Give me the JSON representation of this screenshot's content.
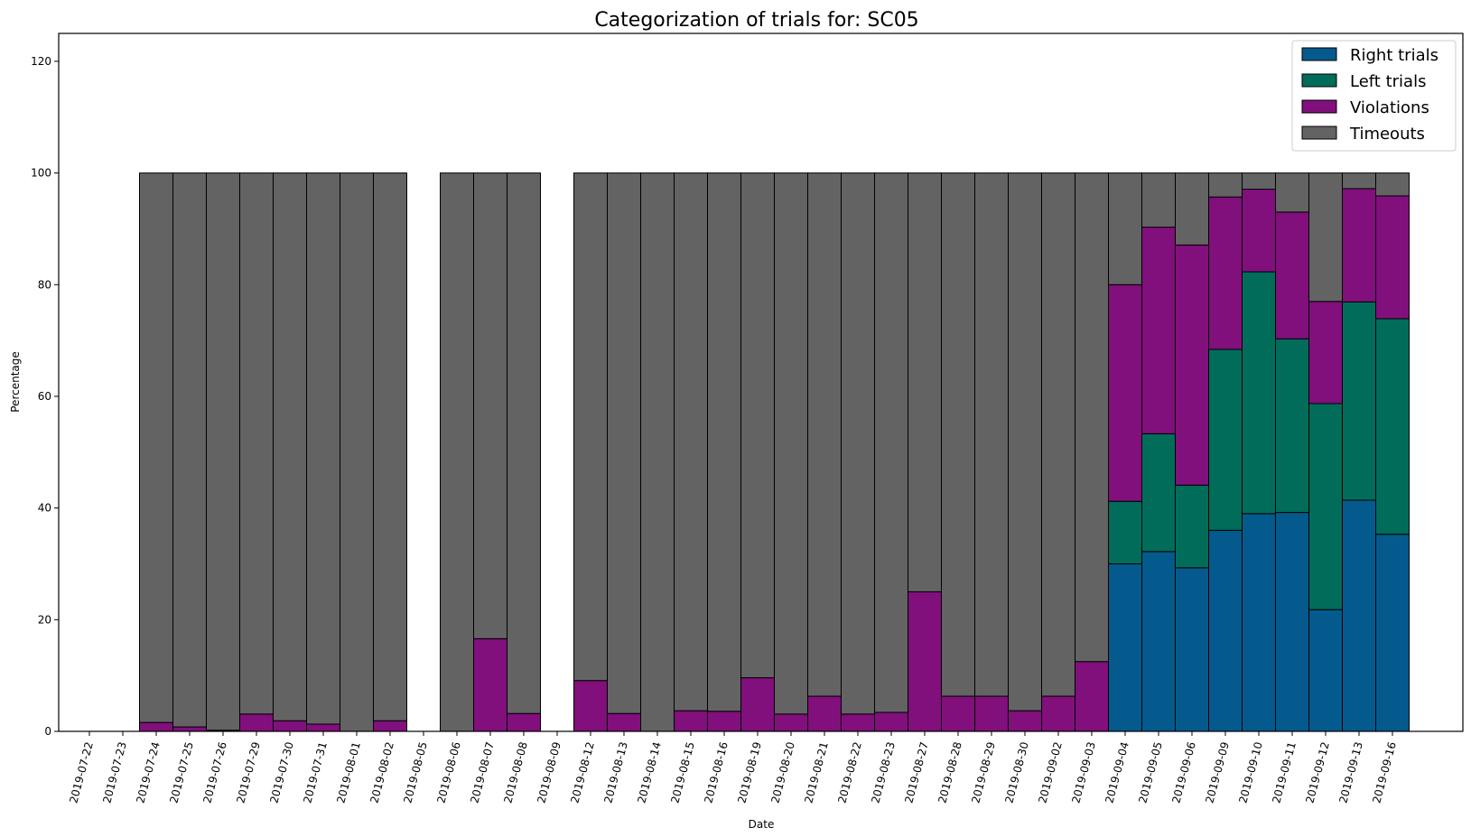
{
  "chart_data": {
    "type": "bar",
    "stacked": true,
    "title": "Categorization of trials for: SC05",
    "xlabel": "Date",
    "ylabel": "Percentage",
    "ylim": [
      0,
      125
    ],
    "yticks": [
      0,
      20,
      40,
      60,
      80,
      100,
      120
    ],
    "legend_position": "top-right",
    "grid": false,
    "categories": [
      "2019-07-22",
      "2019-07-23",
      "2019-07-24",
      "2019-07-25",
      "2019-07-26",
      "2019-07-29",
      "2019-07-30",
      "2019-07-31",
      "2019-08-01",
      "2019-08-02",
      "2019-08-05",
      "2019-08-06",
      "2019-08-07",
      "2019-08-08",
      "2019-08-09",
      "2019-08-12",
      "2019-08-13",
      "2019-08-14",
      "2019-08-15",
      "2019-08-16",
      "2019-08-19",
      "2019-08-20",
      "2019-08-21",
      "2019-08-22",
      "2019-08-23",
      "2019-08-27",
      "2019-08-28",
      "2019-08-29",
      "2019-08-30",
      "2019-09-02",
      "2019-09-03",
      "2019-09-04",
      "2019-09-05",
      "2019-09-06",
      "2019-09-09",
      "2019-09-10",
      "2019-09-11",
      "2019-09-12",
      "2019-09-13",
      "2019-09-16"
    ],
    "series": [
      {
        "name": "Right trials",
        "color": "#045a8d",
        "values": [
          0,
          0,
          0,
          0,
          0,
          0,
          0,
          0,
          0,
          0,
          0,
          0,
          0,
          0,
          0,
          0,
          0,
          0,
          0,
          0,
          0,
          0,
          0,
          0,
          0,
          0,
          0,
          0,
          0,
          0,
          0,
          30,
          32.2,
          29.3,
          36,
          39,
          39.2,
          21.8,
          41.4,
          35.3
        ]
      },
      {
        "name": "Left trials",
        "color": "#016c59",
        "values": [
          0,
          0,
          0,
          0,
          0,
          0,
          0,
          0,
          0,
          0,
          0,
          0,
          0,
          0,
          0,
          0,
          0,
          0,
          0,
          0,
          0,
          0,
          0,
          0,
          0,
          0,
          0,
          0,
          0,
          0,
          0,
          11.2,
          21.1,
          14.8,
          32.4,
          43.3,
          31.1,
          36.9,
          35.5,
          38.6
        ]
      },
      {
        "name": "Violations",
        "color": "#810f7c",
        "values": [
          0,
          0,
          1.6,
          0.8,
          0.2,
          3.1,
          1.9,
          1.3,
          0,
          1.9,
          0,
          0,
          16.6,
          3.2,
          0,
          9.1,
          3.2,
          0,
          3.7,
          3.6,
          9.6,
          3.1,
          6.3,
          3.1,
          3.4,
          25,
          6.3,
          6.3,
          3.7,
          6.3,
          12.5,
          38.8,
          37,
          43,
          27.3,
          14.8,
          22.7,
          18.3,
          20.3,
          22
        ]
      },
      {
        "name": "Timeouts",
        "color": "#636363",
        "values": [
          0,
          0,
          98.4,
          99.2,
          99.8,
          96.9,
          98.1,
          98.7,
          100,
          98.1,
          0,
          100,
          83.4,
          96.8,
          0,
          90.9,
          96.8,
          100,
          96.3,
          96.4,
          90.4,
          96.9,
          93.7,
          96.9,
          96.6,
          75,
          93.7,
          93.7,
          96.3,
          93.7,
          87.5,
          20,
          9.7,
          12.9,
          4.3,
          2.9,
          7,
          23,
          2.8,
          4.1
        ]
      }
    ]
  }
}
